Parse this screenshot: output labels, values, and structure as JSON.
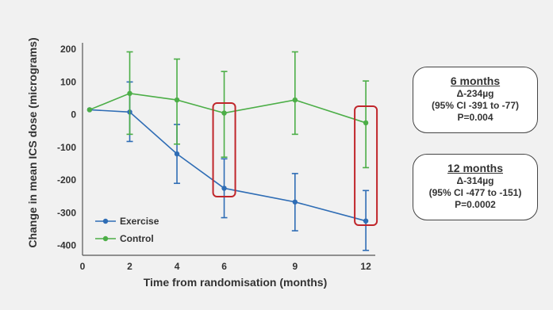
{
  "chart_data": {
    "type": "line",
    "title": "",
    "xlabel": "Time from randomisation (months)",
    "ylabel": "Change in mean ICS dose (micrograms)",
    "xlim": [
      0,
      12.4
    ],
    "ylim": [
      -430,
      210
    ],
    "x_ticks": [
      0,
      2,
      4,
      6,
      9,
      12
    ],
    "y_ticks": [
      200,
      100,
      0,
      -100,
      -200,
      -300,
      -400
    ],
    "y_tick_labels": [
      "200",
      "100",
      "0",
      "-100",
      "-200",
      "-300",
      "-400"
    ],
    "grid": false,
    "legend_position": "bottom-left",
    "series": [
      {
        "name": "Exercise",
        "color": "#2f6db5",
        "x": [
          0.3,
          2,
          4,
          6,
          9,
          12
        ],
        "y": [
          15,
          8,
          -120,
          -225,
          -267,
          -325
        ],
        "err_low": [
          15,
          -82,
          -210,
          -315,
          -355,
          -415
        ],
        "err_high": [
          15,
          100,
          -30,
          -135,
          -180,
          -232
        ]
      },
      {
        "name": "Control",
        "color": "#4cae47",
        "x": [
          0.3,
          2,
          4,
          6,
          9,
          12
        ],
        "y": [
          15,
          65,
          45,
          5,
          45,
          -25
        ],
        "err_low": [
          15,
          -60,
          -90,
          -130,
          -60,
          -162
        ],
        "err_high": [
          15,
          192,
          170,
          132,
          192,
          103
        ]
      }
    ],
    "highlight_x": [
      6,
      12
    ],
    "highlight_color": "#c0262b"
  },
  "annotations": [
    {
      "heading": "6 months",
      "lines": [
        "Δ-234µg",
        "(95% CI -391 to -77)",
        "P=0.004"
      ]
    },
    {
      "heading": "12 months",
      "lines": [
        "Δ-314µg",
        "(95% CI -477 to -151)",
        "P=0.0002"
      ]
    }
  ]
}
